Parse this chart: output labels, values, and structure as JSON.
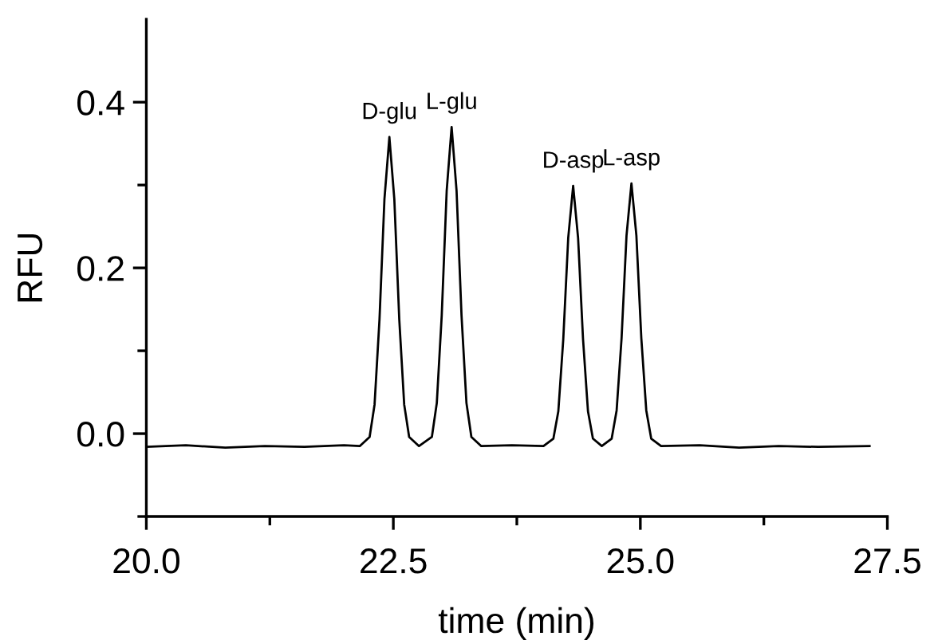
{
  "chart_data": {
    "type": "line",
    "xlabel": "time (min)",
    "ylabel": "RFU",
    "xlim": [
      20.0,
      27.5
    ],
    "ylim": [
      -0.1,
      0.5
    ],
    "xticks": [
      {
        "value": 20.0,
        "label": "20.0"
      },
      {
        "value": 21.25,
        "label": null
      },
      {
        "value": 22.5,
        "label": "22.5"
      },
      {
        "value": 23.75,
        "label": null
      },
      {
        "value": 25.0,
        "label": "25.0"
      },
      {
        "value": 26.25,
        "label": null
      },
      {
        "value": 27.5,
        "label": "27.5"
      }
    ],
    "yticks": [
      {
        "value": -0.1,
        "label": null
      },
      {
        "value": 0.0,
        "label": "0.0"
      },
      {
        "value": 0.1,
        "label": null
      },
      {
        "value": 0.2,
        "label": "0.2"
      },
      {
        "value": 0.3,
        "label": null
      },
      {
        "value": 0.4,
        "label": "0.4"
      }
    ],
    "grid": false,
    "legend": false,
    "marker": "none",
    "line_style": "solid",
    "series": [
      {
        "color": "#000000",
        "x": [
          20.0,
          20.4,
          20.8,
          21.2,
          21.6,
          22.0,
          22.16,
          22.26,
          22.31,
          22.36,
          22.41,
          22.46,
          22.51,
          22.56,
          22.61,
          22.66,
          22.76,
          22.89,
          22.94,
          22.99,
          23.04,
          23.09,
          23.14,
          23.19,
          23.24,
          23.29,
          23.39,
          23.7,
          24.02,
          24.12,
          24.17,
          24.22,
          24.27,
          24.32,
          24.37,
          24.42,
          24.47,
          24.52,
          24.61,
          24.71,
          24.76,
          24.81,
          24.86,
          24.91,
          24.96,
          25.01,
          25.06,
          25.11,
          25.21,
          25.6,
          26.0,
          26.4,
          26.8,
          27.32
        ],
        "values": [
          -0.016,
          -0.014,
          -0.017,
          -0.015,
          -0.016,
          -0.014,
          -0.015,
          -0.004,
          0.035,
          0.138,
          0.283,
          0.358,
          0.283,
          0.138,
          0.035,
          -0.004,
          -0.015,
          -0.004,
          0.037,
          0.143,
          0.293,
          0.37,
          0.293,
          0.143,
          0.037,
          -0.004,
          -0.015,
          -0.014,
          -0.015,
          -0.006,
          0.027,
          0.114,
          0.236,
          0.299,
          0.236,
          0.114,
          0.027,
          -0.006,
          -0.015,
          -0.006,
          0.028,
          0.115,
          0.239,
          0.302,
          0.239,
          0.115,
          0.028,
          -0.006,
          -0.015,
          -0.014,
          -0.017,
          -0.015,
          -0.016,
          -0.015
        ]
      }
    ],
    "annotations": [
      {
        "text": "D-glu",
        "x": 22.46,
        "y": 0.358
      },
      {
        "text": "L-glu",
        "x": 23.09,
        "y": 0.37
      },
      {
        "text": "D-asp",
        "x": 24.32,
        "y": 0.299
      },
      {
        "text": "L-asp",
        "x": 24.91,
        "y": 0.302
      }
    ]
  }
}
